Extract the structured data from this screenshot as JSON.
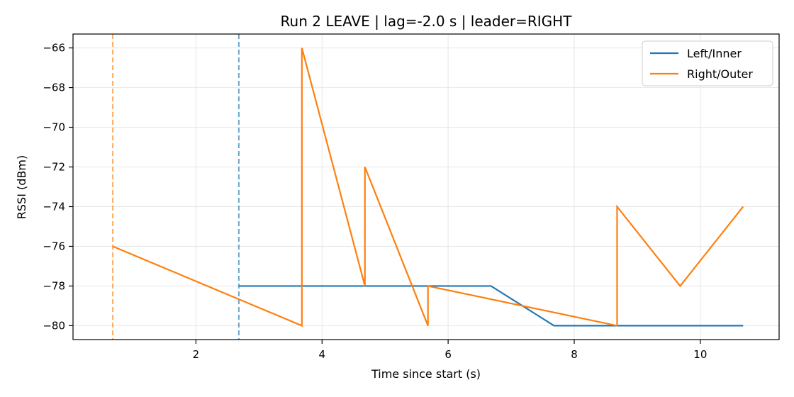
{
  "chart_data": {
    "type": "line",
    "title": "Run 2 LEAVE | lag=-2.0 s | leader=RIGHT",
    "xlabel": "Time since start (s)",
    "ylabel": "RSSI (dBm)",
    "xlim": [
      0.05,
      11.25
    ],
    "ylim": [
      -80.7,
      -65.3
    ],
    "xticks": [
      2,
      4,
      6,
      8,
      10
    ],
    "yticks": [
      -66,
      -68,
      -70,
      -72,
      -74,
      -76,
      -78,
      -80
    ],
    "grid": true,
    "legend_position": "top-right",
    "series": [
      {
        "name": "Left/Inner",
        "color": "#1f77b4",
        "x": [
          2.68,
          3.68,
          4.68,
          5.68,
          6.68,
          7.68,
          8.68,
          9.68,
          10.68
        ],
        "y": [
          -78,
          -78,
          -78,
          -78,
          -78,
          -80,
          -80,
          -80,
          -80
        ]
      },
      {
        "name": "Right/Outer",
        "color": "#ff7f0e",
        "x": [
          0.68,
          3.68,
          3.68,
          4.68,
          4.68,
          5.68,
          5.68,
          8.68,
          8.68,
          9.68,
          10.68
        ],
        "y": [
          -76,
          -80,
          -66,
          -78,
          -72,
          -80,
          -78,
          -80,
          -74,
          -78,
          -74
        ]
      }
    ],
    "vlines": [
      {
        "x": 0.68,
        "color": "#ff7f0e",
        "style": "dashed"
      },
      {
        "x": 2.68,
        "color": "#1f77b4",
        "style": "dashed"
      }
    ]
  }
}
